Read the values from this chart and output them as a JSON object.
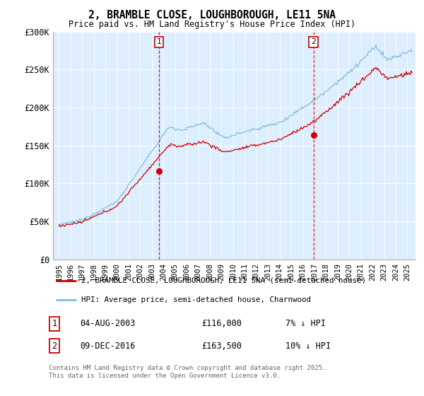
{
  "title": "2, BRAMBLE CLOSE, LOUGHBOROUGH, LE11 5NA",
  "subtitle": "Price paid vs. HM Land Registry's House Price Index (HPI)",
  "ylim": [
    0,
    300000
  ],
  "yticks": [
    0,
    50000,
    100000,
    150000,
    200000,
    250000,
    300000
  ],
  "ytick_labels": [
    "£0",
    "£50K",
    "£100K",
    "£150K",
    "£200K",
    "£250K",
    "£300K"
  ],
  "background_color": "#ffffff",
  "plot_bg_color": "#ddeeff",
  "hpi_color": "#7fbfdf",
  "price_color": "#cc0000",
  "vline_color": "#cc0000",
  "sale1_year": 2003.62,
  "sale2_year": 2016.92,
  "price1_y": 116000,
  "price2_y": 163500,
  "legend_label1": "2, BRAMBLE CLOSE, LOUGHBOROUGH, LE11 5NA (semi-detached house)",
  "legend_label2": "HPI: Average price, semi-detached house, Charnwood",
  "footer": "Contains HM Land Registry data © Crown copyright and database right 2025.\nThis data is licensed under the Open Government Licence v3.0.",
  "xmin": 1994.5,
  "xmax": 2025.7
}
